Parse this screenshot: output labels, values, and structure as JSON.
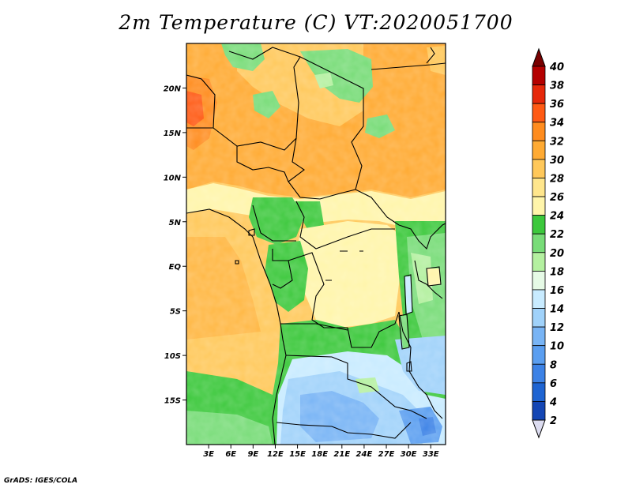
{
  "title": "2m Temperature (C) VT:2020051700",
  "credit": "GrADS: IGES/COLA",
  "map": {
    "lon_range": [
      0,
      35
    ],
    "lat_range": [
      -20,
      25
    ],
    "lat_ticks": [
      {
        "value": 20,
        "label": "20N"
      },
      {
        "value": 15,
        "label": "15N"
      },
      {
        "value": 10,
        "label": "10N"
      },
      {
        "value": 5,
        "label": "5N"
      },
      {
        "value": 0,
        "label": "EQ"
      },
      {
        "value": -5,
        "label": "5S"
      },
      {
        "value": -10,
        "label": "10S"
      },
      {
        "value": -15,
        "label": "15S"
      }
    ],
    "lon_ticks": [
      {
        "value": 3,
        "label": "3E"
      },
      {
        "value": 6,
        "label": "6E"
      },
      {
        "value": 9,
        "label": "9E"
      },
      {
        "value": 12,
        "label": "12E"
      },
      {
        "value": 15,
        "label": "15E"
      },
      {
        "value": 18,
        "label": "18E"
      },
      {
        "value": 21,
        "label": "21E"
      },
      {
        "value": 24,
        "label": "24E"
      },
      {
        "value": 27,
        "label": "27E"
      },
      {
        "value": 30,
        "label": "30E"
      },
      {
        "value": 33,
        "label": "33E"
      }
    ]
  },
  "colorbar": {
    "levels": [
      "2",
      "4",
      "6",
      "8",
      "10",
      "12",
      "14",
      "16",
      "18",
      "20",
      "22",
      "24",
      "26",
      "28",
      "30",
      "32",
      "34",
      "36",
      "38",
      "40"
    ],
    "colors": [
      "#0a1e78",
      "#1446b4",
      "#1e64d2",
      "#3c82e6",
      "#5a9ef0",
      "#78b4f5",
      "#a0d2fa",
      "#c8ebff",
      "#e6fae6",
      "#b4f0a0",
      "#78dc78",
      "#3cc83c",
      "#fff5aa",
      "#ffe68c",
      "#ffc85a",
      "#ffaa32",
      "#ff8c1e",
      "#ff5a14",
      "#e6280a",
      "#b40000",
      "#780000"
    ],
    "under_color": "#dcdcf0"
  }
}
